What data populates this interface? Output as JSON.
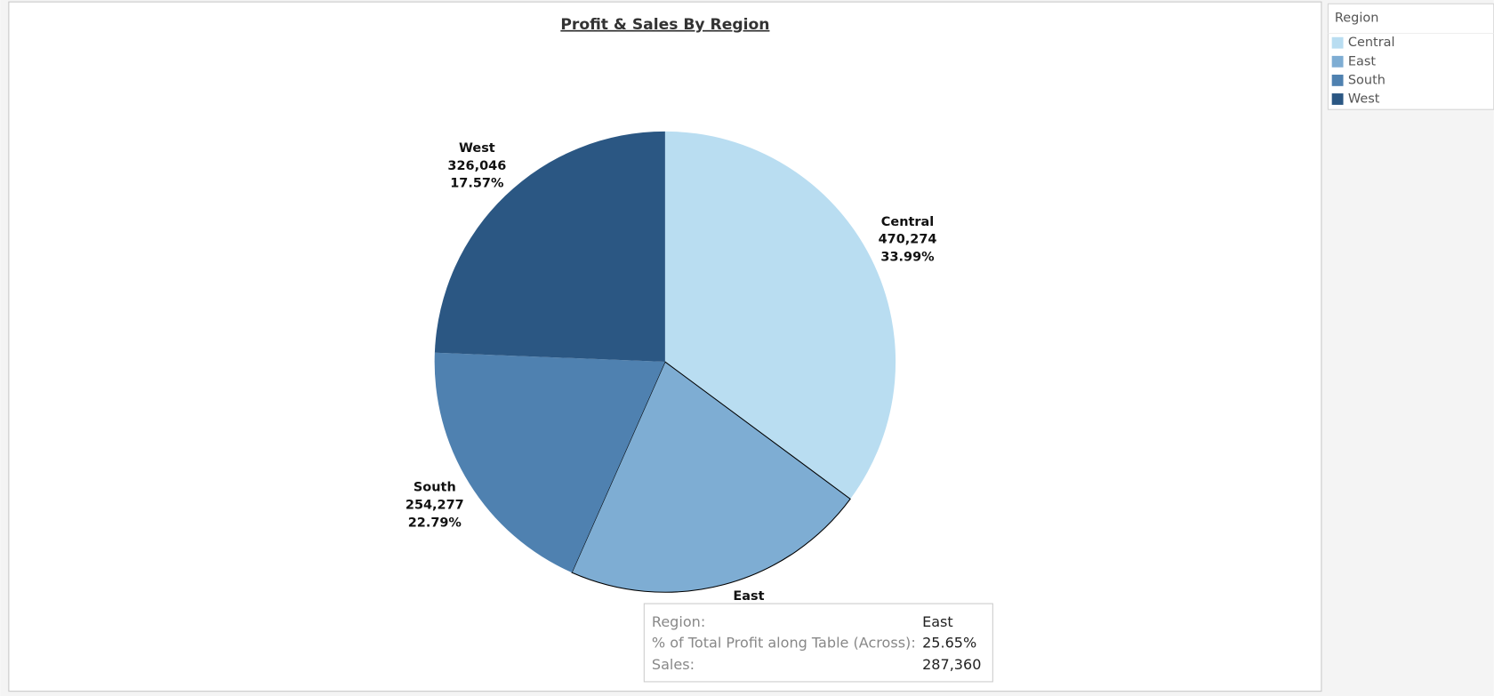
{
  "chart_data": {
    "type": "pie",
    "title": "Profit & Sales By Region",
    "categories": [
      "Central",
      "East",
      "South",
      "West"
    ],
    "values": [
      470274,
      287360,
      254277,
      326046
    ],
    "value_labels": [
      "470,274",
      "287,360",
      "254,277",
      "326,046"
    ],
    "profit_share": {
      "values": [
        33.99,
        25.65,
        22.79,
        17.57
      ],
      "labels": [
        "33.99%",
        "25.65%",
        "22.79%",
        "17.57%"
      ]
    },
    "colors": [
      "#b9ddf1",
      "#7eadd3",
      "#4f81b0",
      "#2b5783"
    ],
    "legend": {
      "title": "Region",
      "position": "right"
    }
  },
  "tooltip": {
    "labels": [
      "Region:",
      "% of Total Profit along Table (Across):",
      "Sales:"
    ]
  }
}
